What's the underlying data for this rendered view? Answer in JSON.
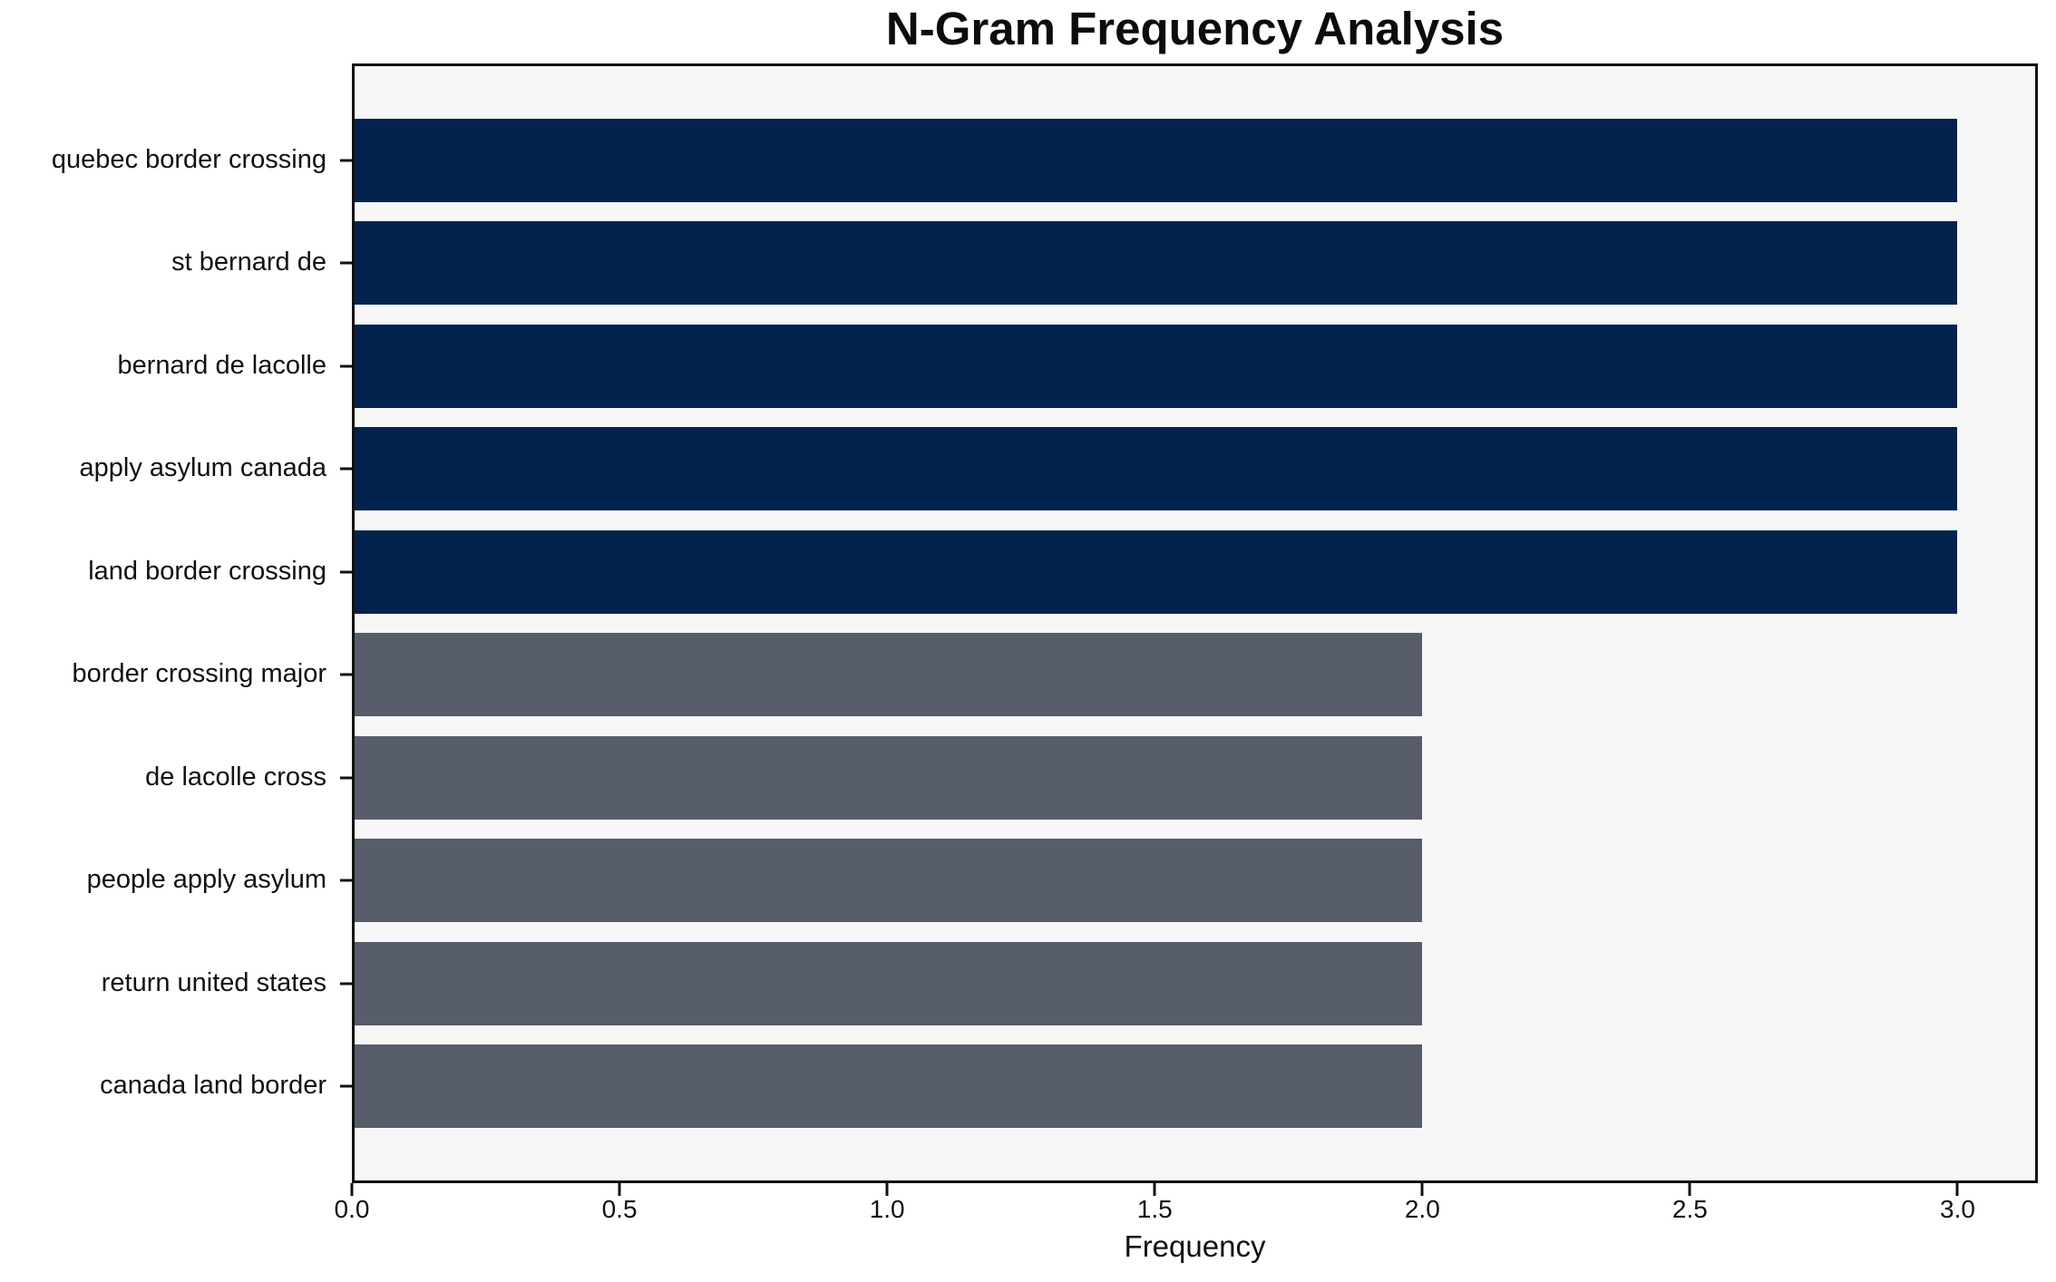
{
  "chart_data": {
    "type": "bar",
    "orientation": "horizontal",
    "title": "N-Gram Frequency Analysis",
    "xlabel": "Frequency",
    "ylabel": "",
    "categories": [
      "quebec border crossing",
      "st bernard de",
      "bernard de lacolle",
      "apply asylum canada",
      "land border crossing",
      "border crossing major",
      "de lacolle cross",
      "people apply asylum",
      "return united states",
      "canada land border"
    ],
    "values": [
      3,
      3,
      3,
      3,
      3,
      2,
      2,
      2,
      2,
      2
    ],
    "bar_colors": [
      "#02234d",
      "#02234d",
      "#02234d",
      "#02234d",
      "#02234d",
      "#575d6b",
      "#575d6b",
      "#575d6b",
      "#575d6b",
      "#575d6b"
    ],
    "xlim": [
      0,
      3.15
    ],
    "xticks": [
      0.0,
      0.5,
      1.0,
      1.5,
      2.0,
      2.5,
      3.0
    ],
    "xtick_labels": [
      "0.0",
      "0.5",
      "1.0",
      "1.5",
      "2.0",
      "2.5",
      "3.0"
    ],
    "grid": false,
    "legend": null,
    "colors": {
      "high_freq_bar": "#02234d",
      "low_freq_bar": "#575d6b",
      "plot_background": "#f7f7f8",
      "figure_background": "#ffffff",
      "spine": "#121212",
      "text": "#111111"
    }
  }
}
